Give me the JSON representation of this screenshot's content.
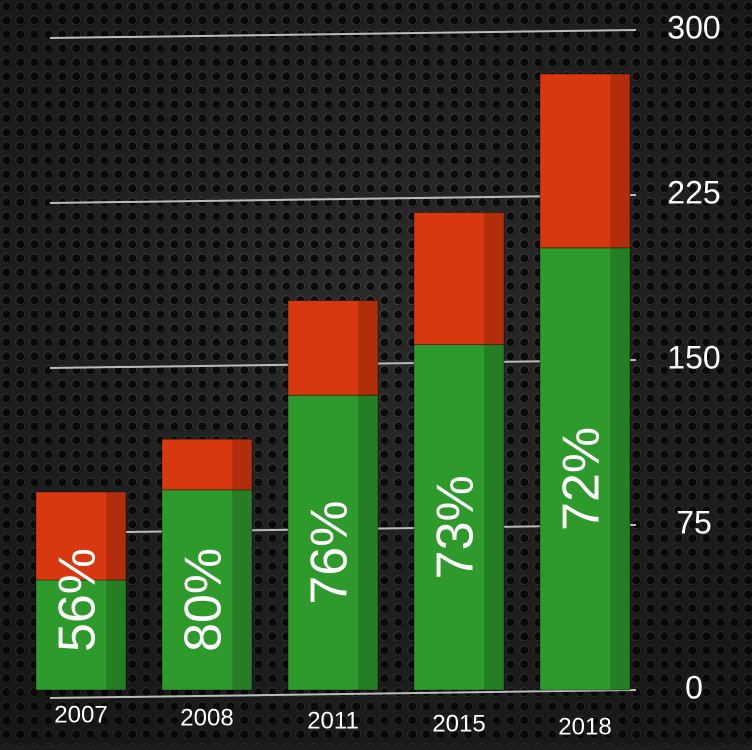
{
  "chart_data": {
    "type": "stacked_bar",
    "categories": [
      "2007",
      "2008",
      "2011",
      "2015",
      "2018"
    ],
    "series": [
      {
        "color": "#2f9a2c",
        "values": [
          50,
          91,
          134,
          157,
          201
        ]
      },
      {
        "color": "#d8380f",
        "values": [
          40,
          23,
          43,
          60,
          79
        ]
      }
    ],
    "annotations": [
      "56%",
      "80%",
      "76%",
      "73%",
      "72%"
    ],
    "ylim": [
      0,
      300
    ],
    "yticks": [
      0,
      75,
      150,
      225,
      300
    ],
    "grid": true
  }
}
